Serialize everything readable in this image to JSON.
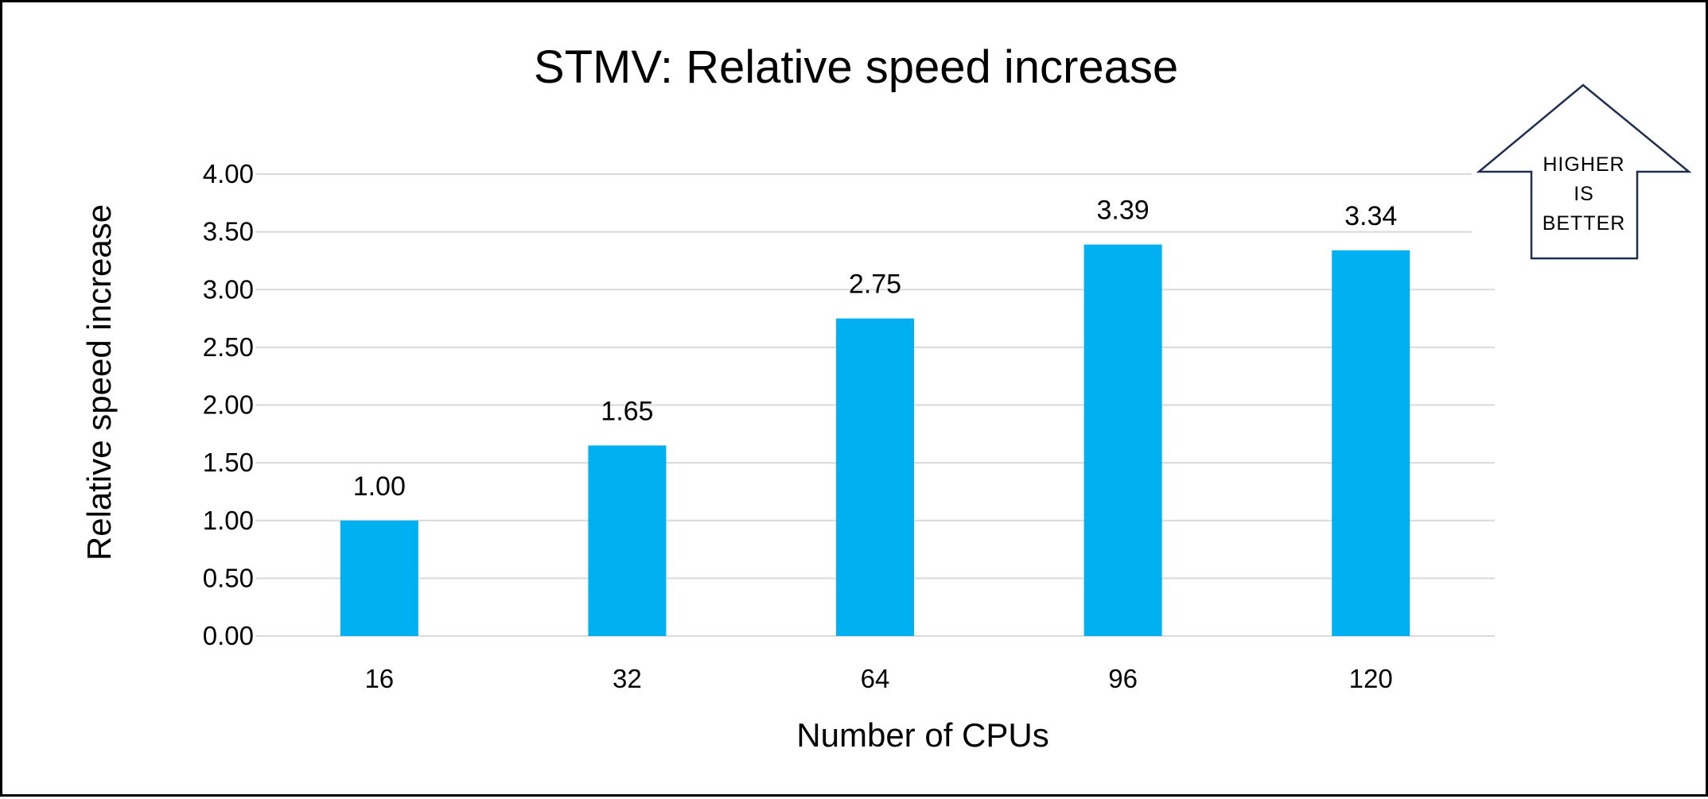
{
  "chart_data": {
    "type": "bar",
    "title": "STMV: Relative speed increase",
    "xlabel": "Number of CPUs",
    "ylabel": "Relative speed increase",
    "categories": [
      "16",
      "32",
      "64",
      "96",
      "120"
    ],
    "values": [
      1.0,
      1.65,
      2.75,
      3.39,
      3.34
    ],
    "value_labels": [
      "1.00",
      "1.65",
      "2.75",
      "3.39",
      "3.34"
    ],
    "ylim": [
      0,
      4
    ],
    "yticks": [
      "0.00",
      "0.50",
      "1.00",
      "1.50",
      "2.00",
      "2.50",
      "3.00",
      "3.50",
      "4.00"
    ],
    "grid": true,
    "legend": "none",
    "bar_color": "#00B0F0",
    "grid_color": "#D9D9D9",
    "annotation": {
      "shape": "up-arrow",
      "lines": [
        "HIGHER",
        "IS",
        "BETTER"
      ],
      "outline_color": "#1F2D4E"
    }
  }
}
